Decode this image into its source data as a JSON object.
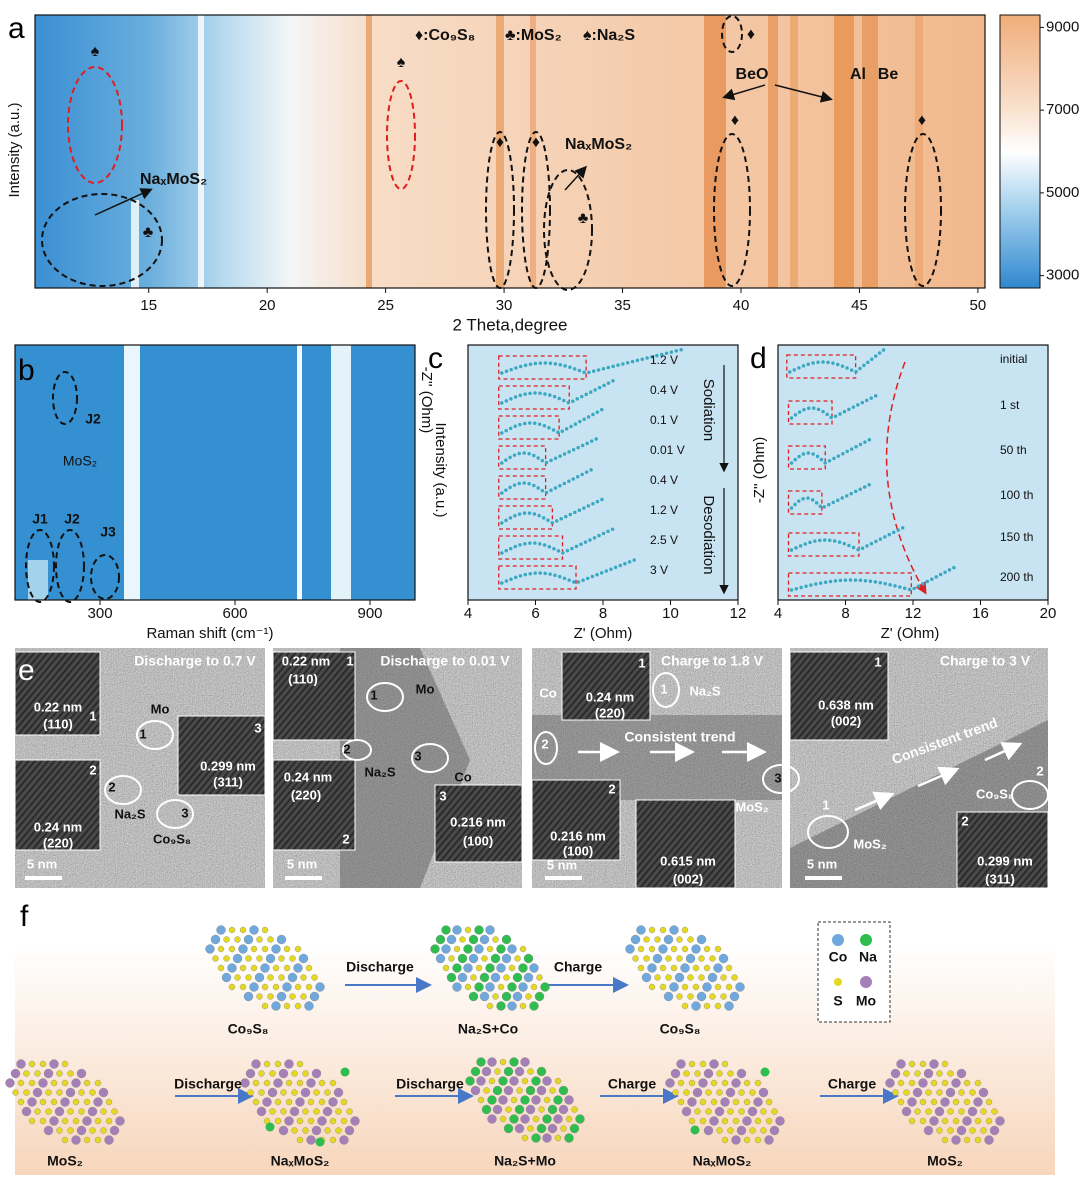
{
  "panel_labels": [
    "a",
    "b",
    "c",
    "d",
    "e",
    "f"
  ],
  "chart_data": [
    {
      "type": "heatmap",
      "xlabel": "2 Theta,degree",
      "ylabel": "Intensity (a.u.)",
      "xlim": [
        10.2,
        50.3
      ],
      "xticks": [
        15,
        20,
        25,
        30,
        35,
        40,
        45,
        50
      ],
      "legend": [
        "♦:Co₉S₈",
        "♣:MoS₂",
        "♠:Na₂S"
      ],
      "annotations": [
        "♠",
        "NaₓMoS₂",
        "♣",
        "♠",
        "♦",
        "♦",
        "NaₓMoS₂",
        "♣",
        "♦",
        "BeO",
        "Al",
        "Be",
        "♦",
        "♦"
      ],
      "colorbar": {
        "ylim": [
          2700,
          9300
        ],
        "yticks": [
          3000,
          5000,
          7000,
          9000
        ]
      }
    },
    {
      "type": "heatmap",
      "xlabel": "Raman shift (cm⁻¹)",
      "xlim": [
        111,
        1000
      ],
      "xticks": [
        300,
        600,
        900
      ],
      "annotations": [
        "J2",
        "MoS₂",
        "J1",
        "J2",
        "J3"
      ]
    },
    {
      "type": "eis",
      "xlabel": "Z' (Ohm)",
      "ylabel": "-Z'' (Ohm)",
      "ylabel2": "Intensity (a.u.)",
      "xlim": [
        4,
        12
      ],
      "xticks": [
        4,
        6,
        8,
        10,
        12
      ],
      "color": "#3aa8c0",
      "series": [
        {
          "name": "1.2 V",
          "box": [
            5,
            7.5
          ],
          "end": 10.4
        },
        {
          "name": "0.4 V",
          "box": [
            5,
            7.0
          ],
          "end": 8.4
        },
        {
          "name": "0.1 V",
          "box": [
            5,
            6.7
          ],
          "end": 8.0
        },
        {
          "name": "0.01 V",
          "box": [
            5,
            6.3
          ],
          "end": 7.8
        },
        {
          "name": "0.4 V",
          "box": [
            5,
            6.3
          ],
          "end": 7.7
        },
        {
          "name": "1.2 V",
          "box": [
            5,
            6.5
          ],
          "end": 8.0
        },
        {
          "name": "2.5 V",
          "box": [
            5,
            6.8
          ],
          "end": 8.3
        },
        {
          "name": "3 V",
          "box": [
            5,
            7.2
          ],
          "end": 9.0
        }
      ],
      "annotations": [
        "Sodiation",
        "Desodiation"
      ]
    },
    {
      "type": "eis",
      "xlabel": "Z' (Ohm)",
      "ylabel": "-Z'' (Ohm)",
      "xlim": [
        4,
        20
      ],
      "xticks": [
        4,
        8,
        12,
        16,
        20
      ],
      "color": "#3aa8c0",
      "series": [
        {
          "name": "initial",
          "box": [
            4.7,
            8.6
          ],
          "end": 10.4
        },
        {
          "name": "1 st",
          "box": [
            4.8,
            7.2
          ],
          "end": 10.0
        },
        {
          "name": "50 th",
          "box": [
            4.8,
            6.8
          ],
          "end": 9.5
        },
        {
          "name": "100 th",
          "box": [
            4.8,
            6.6
          ],
          "end": 9.5
        },
        {
          "name": "150 th",
          "box": [
            4.8,
            8.8
          ],
          "end": 11.6
        },
        {
          "name": "200 th",
          "box": [
            4.8,
            11.9
          ],
          "end": 14.6
        }
      ]
    }
  ],
  "tem_images": [
    {
      "labels": [
        "Discharge to 0.7 V",
        "1",
        "0.22 nm",
        "(110)",
        "2",
        "0.24 nm",
        "(220)",
        "3",
        "0.299 nm",
        "(311)",
        "Mo",
        "1",
        "2",
        "Na₂S",
        "3",
        "Co₉S₈",
        "5 nm"
      ]
    },
    {
      "labels": [
        "Discharge to 0.01 V",
        "0.22 nm",
        "1",
        "(110)",
        "1",
        "Mo",
        "2",
        "Na₂S",
        "3",
        "Co",
        "0.24 nm",
        "(220)",
        "2",
        "3",
        "0.216 nm",
        "(100)",
        "5 nm"
      ]
    },
    {
      "labels": [
        "Charge to 1.8 V",
        "1",
        "0.24 nm",
        "(220)",
        "Co",
        "2",
        "1",
        "Na₂S",
        "Consistent trend",
        "3",
        "MoS₂",
        "2",
        "0.216 nm",
        "(100)",
        "0.615 nm",
        "(002)",
        "5 nm"
      ]
    },
    {
      "labels": [
        "Charge to 3 V",
        "1",
        "0.638 nm",
        "(002)",
        "Consistent trend",
        "2",
        "Co₉S₈",
        "1",
        "MoS₂",
        "2",
        "0.299 nm",
        "(311)",
        "5 nm"
      ]
    }
  ],
  "schematic": {
    "labels": [
      "Discharge",
      "Charge",
      "Co₉S₈",
      "Na₂S+Co",
      "Co₉S₈",
      "Co",
      "Na",
      "S",
      "Mo",
      "MoS₂",
      "Discharge",
      "NaₓMoS₂",
      "Discharge",
      "Na₂S+Mo",
      "Charge",
      "NaₓMoS₂",
      "Charge",
      "MoS₂"
    ]
  }
}
